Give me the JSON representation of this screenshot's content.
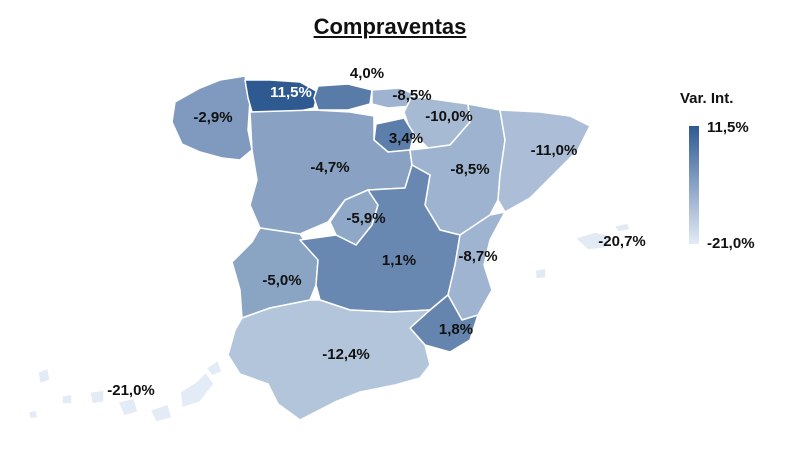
{
  "title": "Compraventas",
  "legend": {
    "title": "Var. Int.",
    "max_label": "11,5%",
    "min_label": "-21,0%",
    "max_value": 11.5,
    "min_value": -21.0,
    "color_max": "#2f5a91",
    "color_min": "#e3ebf6"
  },
  "regions": [
    {
      "id": "galicia",
      "label": "-2,9%",
      "value": -2.9
    },
    {
      "id": "asturias",
      "label": "11,5%",
      "value": 11.5
    },
    {
      "id": "cantabria",
      "label": "4,0%",
      "value": 4.0
    },
    {
      "id": "pais-vasco",
      "label": "-8,5%",
      "value": -8.5
    },
    {
      "id": "navarra",
      "label": "-10,0%",
      "value": -10.0
    },
    {
      "id": "la-rioja",
      "label": "3,4%",
      "value": 3.4
    },
    {
      "id": "aragon",
      "label": "-8,5%",
      "value": -8.5
    },
    {
      "id": "cataluna",
      "label": "-11,0%",
      "value": -11.0
    },
    {
      "id": "castilla-leon",
      "label": "-4,7%",
      "value": -4.7
    },
    {
      "id": "madrid",
      "label": "-5,9%",
      "value": -5.9
    },
    {
      "id": "castilla-la-mancha",
      "label": "1,1%",
      "value": 1.1
    },
    {
      "id": "comunidad-valenciana",
      "label": "-8,7%",
      "value": -8.7
    },
    {
      "id": "extremadura",
      "label": "-5,0%",
      "value": -5.0
    },
    {
      "id": "murcia",
      "label": "1,8%",
      "value": 1.8
    },
    {
      "id": "andalucia",
      "label": "-12,4%",
      "value": -12.4
    },
    {
      "id": "baleares",
      "label": "-20,7%",
      "value": -20.7
    },
    {
      "id": "canarias",
      "label": "-21,0%",
      "value": -21.0
    }
  ]
}
